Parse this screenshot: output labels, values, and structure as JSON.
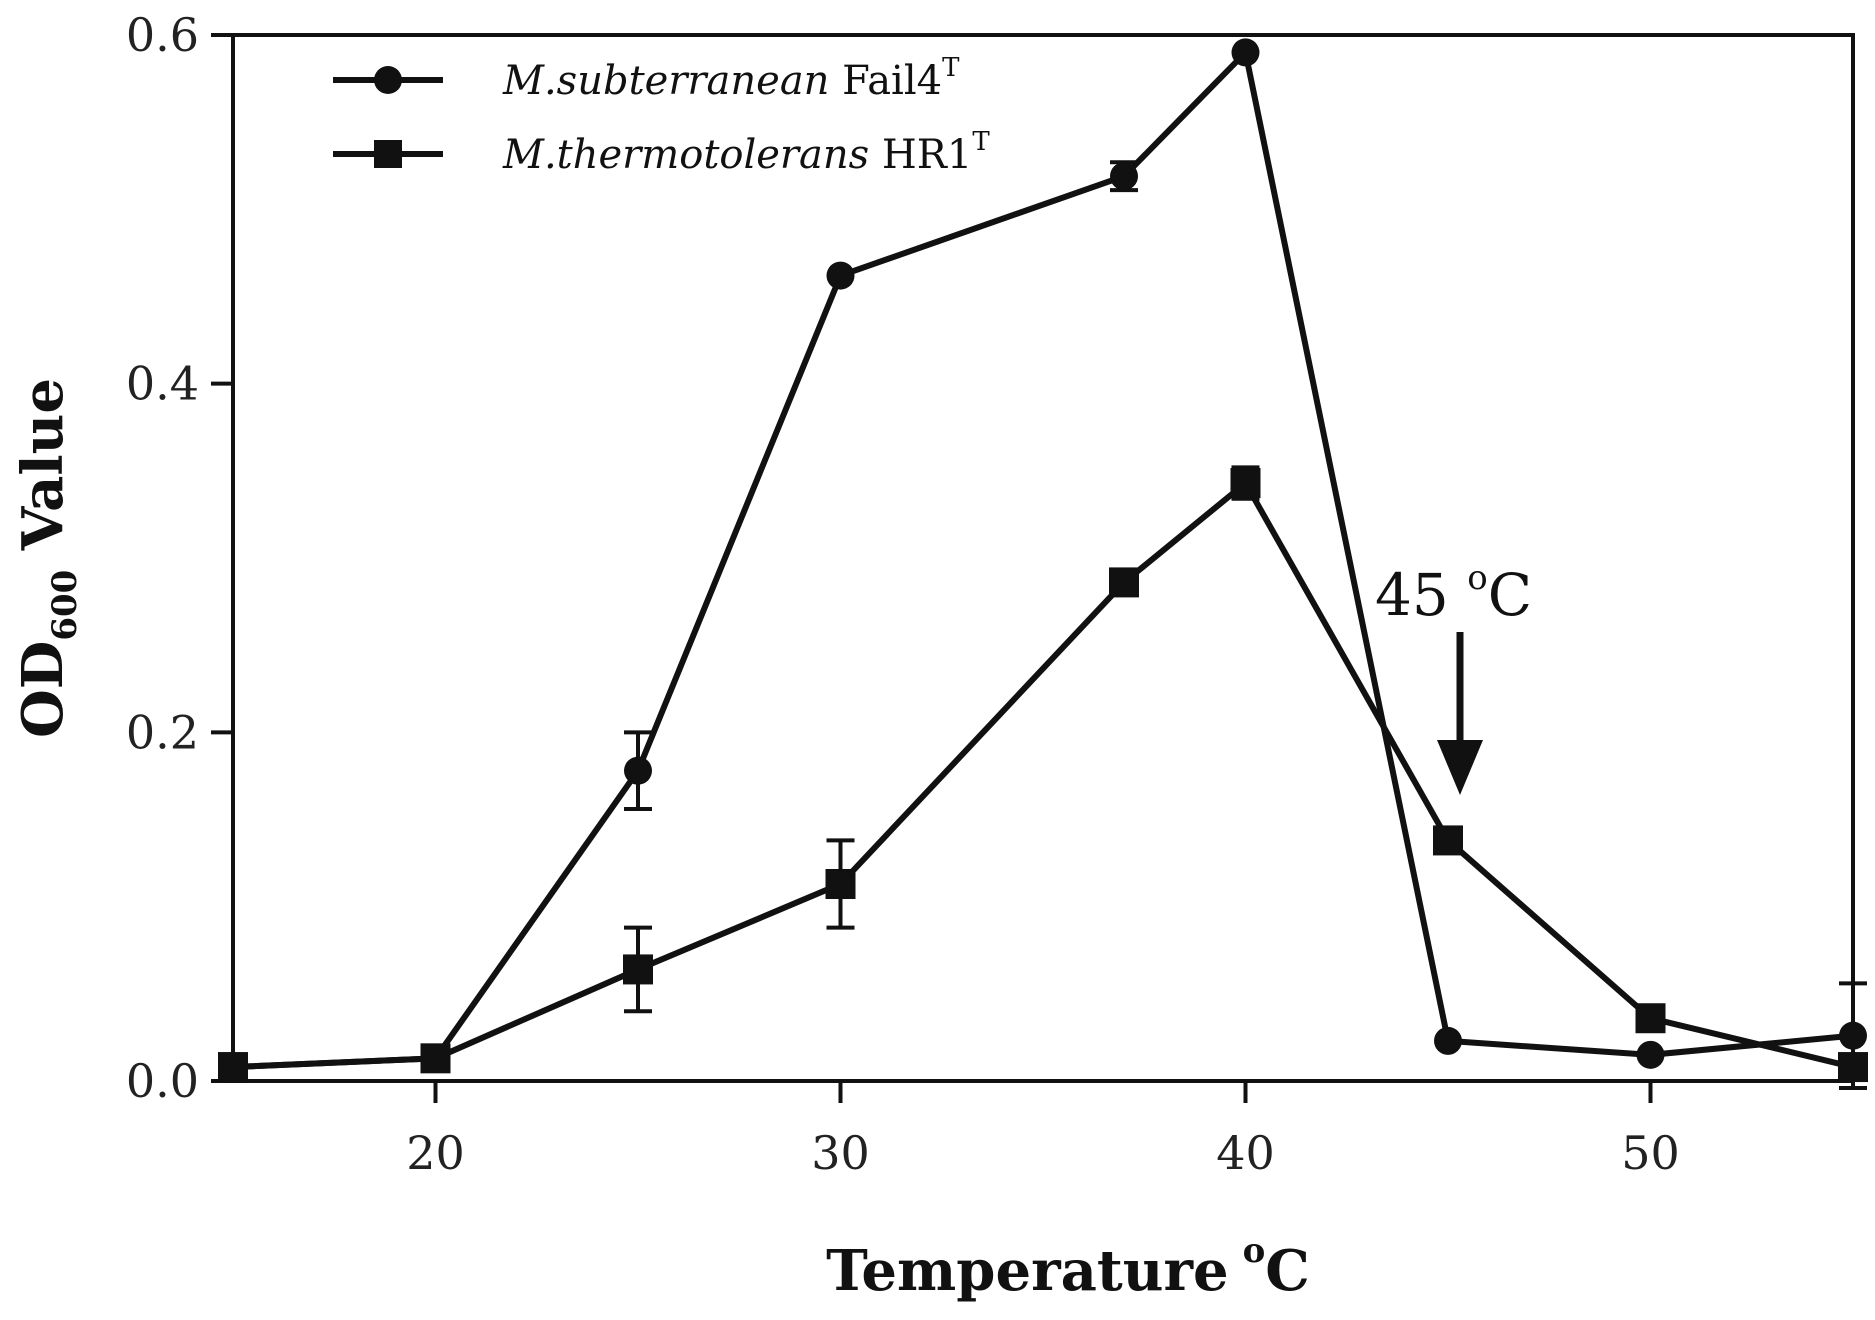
{
  "chart_data": {
    "type": "line",
    "xlabel": "Temperature",
    "xlabel_unit": "oC",
    "ylabel_main": "OD",
    "ylabel_sub": "600",
    "ylabel_rest": " Value",
    "xlim": [
      15,
      55
    ],
    "ylim": [
      0,
      0.6
    ],
    "x_ticks": [
      20,
      30,
      40,
      50
    ],
    "y_ticks": [
      0.0,
      0.2,
      0.4,
      0.6
    ],
    "y_tick_labels": [
      "0.0",
      "0.2",
      "0.4",
      "0.6"
    ],
    "grid": false,
    "legend_position": "top-left",
    "series": [
      {
        "name_italic": "M.subterranean",
        "name_rest": " Fail4",
        "name_sup": "T",
        "marker": "circle",
        "color": "#111111",
        "x": [
          15,
          20,
          25,
          30,
          37,
          40,
          45,
          50,
          55
        ],
        "y": [
          0.008,
          0.013,
          0.178,
          0.462,
          0.519,
          0.59,
          0.023,
          0.015,
          0.026
        ],
        "err": [
          0,
          0,
          0.022,
          0,
          0.008,
          0,
          0,
          0,
          0.03
        ]
      },
      {
        "name_italic": "M.thermotolerans",
        "name_rest": " HR1",
        "name_sup": "T",
        "marker": "square",
        "color": "#111111",
        "x": [
          15,
          20,
          25,
          30,
          37,
          40,
          45,
          50,
          55
        ],
        "y": [
          0.008,
          0.013,
          0.064,
          0.113,
          0.286,
          0.343,
          0.138,
          0.036,
          0.008
        ],
        "err": [
          0,
          0,
          0.024,
          0.025,
          0,
          0.009,
          0,
          0,
          0
        ]
      }
    ],
    "annotation": {
      "text": "45 ",
      "sup": "o",
      "unit": "C",
      "x": 45
    }
  }
}
